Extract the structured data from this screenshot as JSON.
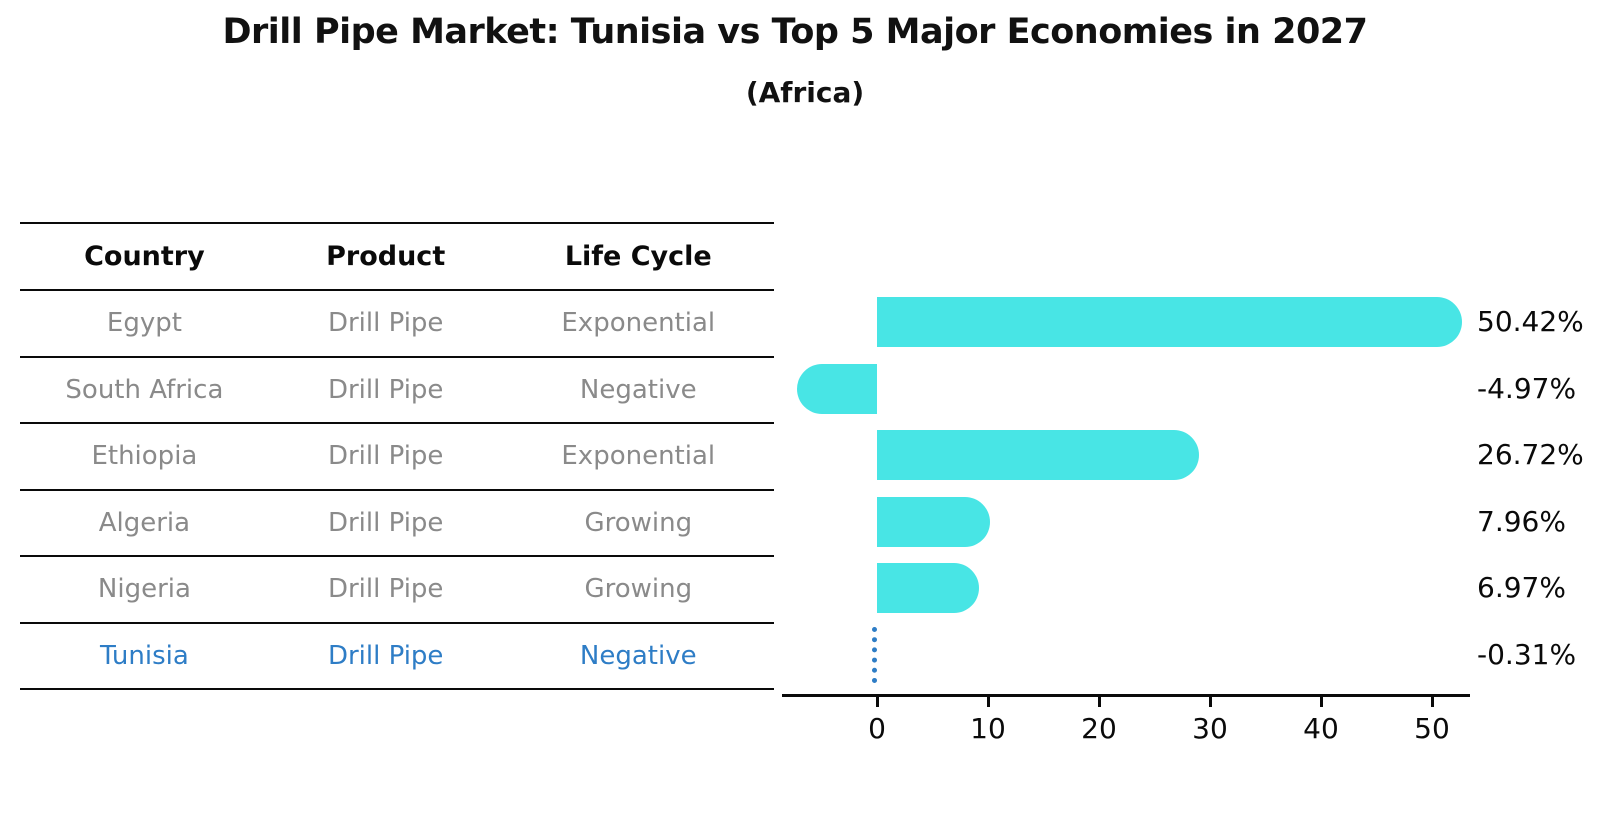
{
  "title": "Drill Pipe Market: Tunisia vs Top 5 Major Economies in 2027",
  "subtitle": "(Africa)",
  "table": {
    "columns": [
      "Country",
      "Product",
      "Life Cycle"
    ],
    "rows": [
      {
        "country": "Egypt",
        "product": "Drill Pipe",
        "life_cycle": "Exponential",
        "highlight": false
      },
      {
        "country": "South Africa",
        "product": "Drill Pipe",
        "life_cycle": "Negative",
        "highlight": false
      },
      {
        "country": "Ethiopia",
        "product": "Drill Pipe",
        "life_cycle": "Exponential",
        "highlight": false
      },
      {
        "country": "Algeria",
        "product": "Drill Pipe",
        "life_cycle": "Growing",
        "highlight": false
      },
      {
        "country": "Nigeria",
        "product": "Drill Pipe",
        "life_cycle": "Growing",
        "highlight": false
      },
      {
        "country": "Tunisia",
        "product": "Drill Pipe",
        "life_cycle": "Negative",
        "highlight": true
      }
    ]
  },
  "chart_data": {
    "type": "bar",
    "orientation": "horizontal",
    "categories": [
      "Egypt",
      "South Africa",
      "Ethiopia",
      "Algeria",
      "Nigeria",
      "Tunisia"
    ],
    "values": [
      50.42,
      -4.97,
      26.72,
      7.96,
      6.97,
      -0.31
    ],
    "value_labels": [
      "50.42%",
      "-4.97%",
      "26.72%",
      "7.96%",
      "6.97%",
      "-0.31%"
    ],
    "x_ticks": [
      0,
      10,
      20,
      30,
      40,
      50
    ],
    "xlim": [
      -9.3,
      53.5
    ],
    "grid": false,
    "legend": false,
    "bar_color": "#48E5E5",
    "highlight_index": 5,
    "highlight_style": "dotted-vertical-line",
    "highlight_color": "#2E7DC6"
  },
  "colors": {
    "text_primary": "#0a0a0a",
    "text_muted": "#8a8a8a",
    "accent_blue": "#2E7DC6",
    "bar_cyan": "#48E5E5"
  }
}
